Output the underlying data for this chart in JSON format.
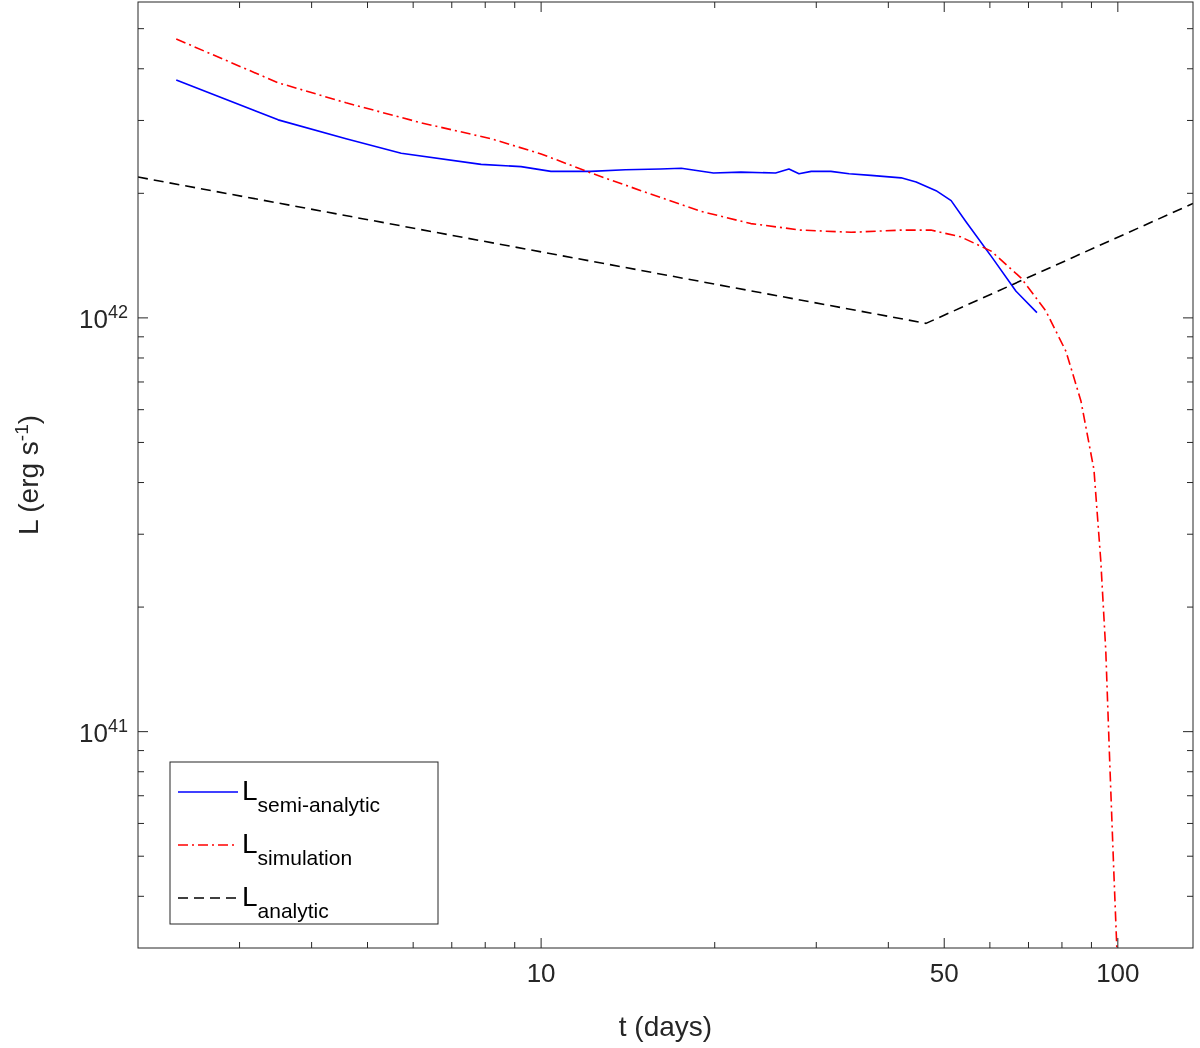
{
  "chart_data": {
    "type": "line",
    "xlabel": "t (days)",
    "ylabel": "L (erg s$^{-1}$)",
    "log": "xy",
    "xlim": [
      2,
      135
    ],
    "ylim": [
      3e+40,
      5.8e+42
    ],
    "xticks": [
      {
        "value": 3,
        "label": null
      },
      {
        "value": 4,
        "label": null
      },
      {
        "value": 5,
        "label": null
      },
      {
        "value": 6,
        "label": null
      },
      {
        "value": 7,
        "label": null
      },
      {
        "value": 8,
        "label": null
      },
      {
        "value": 9,
        "label": null
      },
      10,
      {
        "value": 20,
        "label": null
      },
      {
        "value": 30,
        "label": null
      },
      {
        "value": 40,
        "label": null
      },
      50,
      {
        "value": 60,
        "label": null
      },
      {
        "value": 70,
        "label": null
      },
      {
        "value": 80,
        "label": null
      },
      {
        "value": 90,
        "label": null
      },
      100
    ],
    "yticks": [
      {
        "value": 4e+40,
        "label": null
      },
      {
        "value": 5e+40,
        "label": null
      },
      {
        "value": 6e+40,
        "label": null
      },
      {
        "value": 7e+40,
        "label": null
      },
      {
        "value": 8e+40,
        "label": null
      },
      {
        "value": 9e+40,
        "label": null
      },
      {
        "value": 1e+41,
        "label": "10$^{41}$"
      },
      {
        "value": 2e+41,
        "label": null
      },
      {
        "value": 3e+41,
        "label": null
      },
      {
        "value": 4e+41,
        "label": null
      },
      {
        "value": 5e+41,
        "label": null
      },
      {
        "value": 6e+41,
        "label": null
      },
      {
        "value": 7e+41,
        "label": null
      },
      {
        "value": 8e+41,
        "label": null
      },
      {
        "value": 9e+41,
        "label": null
      },
      {
        "value": 1e+42,
        "label": "10$^{42}$"
      },
      {
        "value": 2e+42,
        "label": null
      },
      {
        "value": 3e+42,
        "label": null
      },
      {
        "value": 4e+42,
        "label": null
      },
      {
        "value": 5e+42,
        "label": null
      }
    ],
    "grid": false,
    "legend": "bottom left",
    "series": [
      {
        "name": "L$_{semi-analytic}$",
        "color": "#0000ff",
        "line_style": "solid",
        "x": [
          2.33,
          3.5,
          4.59,
          5.72,
          7.87,
          9.23,
          10.4,
          12.2,
          14.0,
          16.1,
          17.5,
          19.9,
          22.2,
          25.5,
          26.9,
          28.0,
          29.4,
          31.8,
          34.2,
          37.3,
          42.1,
          44.7,
          48.4,
          51.4,
          54.5,
          60.3,
          66.6,
          72.4
        ],
        "values": [
          3.76e+42,
          3.01e+42,
          2.71e+42,
          2.5e+42,
          2.35e+42,
          2.32e+42,
          2.26e+42,
          2.26e+42,
          2.28e+42,
          2.29e+42,
          2.3e+42,
          2.24e+42,
          2.25e+42,
          2.24e+42,
          2.29e+42,
          2.23e+42,
          2.26e+42,
          2.26e+42,
          2.23e+42,
          2.21e+42,
          2.18e+42,
          2.13e+42,
          2.03e+42,
          1.92e+42,
          1.71e+42,
          1.41e+42,
          1.16e+42,
          1.03e+42
        ]
      },
      {
        "name": "L$_{simulation}$",
        "color": "#ff0000",
        "line_style": "dashdot",
        "x": [
          2.33,
          3.5,
          4.59,
          6.2,
          8.19,
          10,
          12.2,
          14.9,
          18.9,
          23.1,
          28.2,
          34.5,
          42.1,
          47.4,
          53.4,
          60.3,
          67.9,
          75.0,
          81.3,
          86.3,
          90.9,
          93.4,
          95.3,
          96.8,
          98.4,
          99.6
        ],
        "values": [
          4.72e+42,
          3.7e+42,
          3.31e+42,
          2.96e+42,
          2.71e+42,
          2.49e+42,
          2.24e+42,
          2.03e+42,
          1.81e+42,
          1.69e+42,
          1.63e+42,
          1.61e+42,
          1.63e+42,
          1.63e+42,
          1.57e+42,
          1.45e+42,
          1.25e+42,
          1.04e+42,
          8.3e+41,
          6.3e+41,
          4.3e+41,
          2.6e+41,
          1.57e+41,
          8.5e+40,
          4.6e+40,
          3e+40
        ]
      },
      {
        "name": "L$_{analytic}$",
        "color": "#000000",
        "line_style": "dashed",
        "x": [
          2,
          46.5,
          135
        ],
        "values": [
          2.19e+42,
          9.7e+41,
          1.89e+42
        ]
      }
    ]
  }
}
